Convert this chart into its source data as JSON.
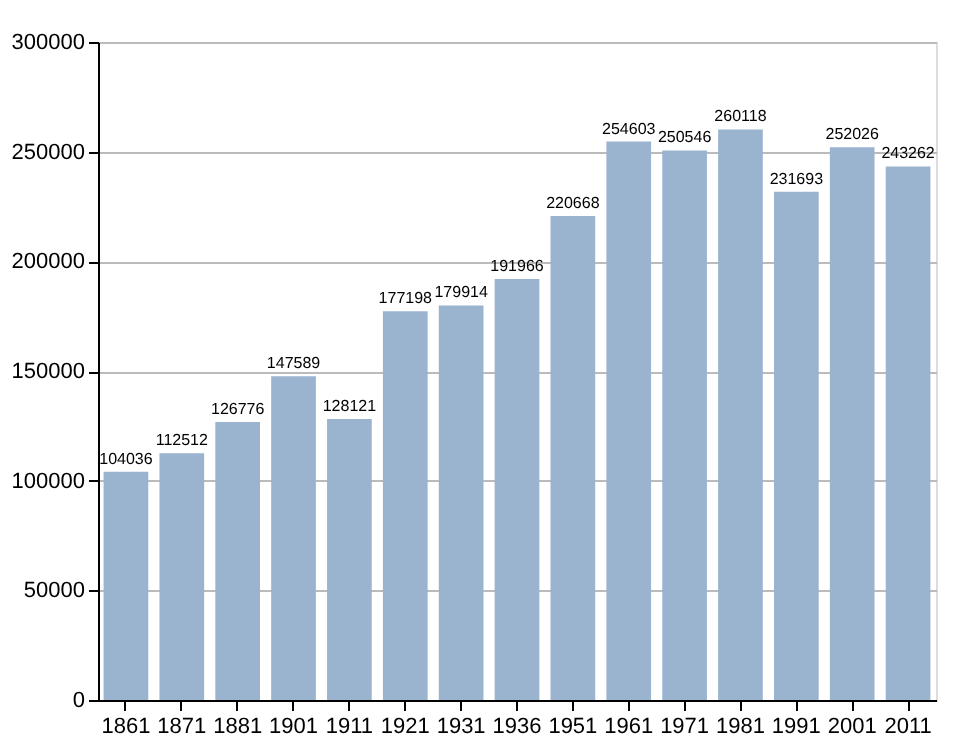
{
  "chart_data": {
    "type": "bar",
    "categories": [
      "1861",
      "1871",
      "1881",
      "1901",
      "1911",
      "1921",
      "1931",
      "1936",
      "1951",
      "1961",
      "1971",
      "1981",
      "1991",
      "2001",
      "2011"
    ],
    "values": [
      104036,
      112512,
      126776,
      147589,
      128121,
      177198,
      179914,
      191966,
      220668,
      254603,
      250546,
      260118,
      231693,
      252026,
      243262
    ],
    "color": "#9ab3cf",
    "data_labels": true,
    "ylim": [
      0,
      300000
    ],
    "yticks": [
      0,
      50000,
      100000,
      150000,
      200000,
      250000,
      300000
    ],
    "grid": "y"
  }
}
